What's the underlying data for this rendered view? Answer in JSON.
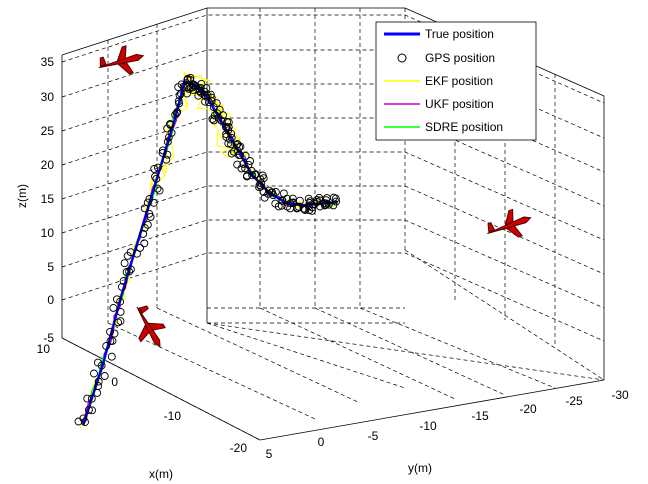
{
  "chart_data": {
    "type": "line",
    "view": "3d",
    "xlabel": "x(m)",
    "ylabel": "y(m)",
    "zlabel": "z(m)",
    "x_ticks": [
      "10",
      "0",
      "-10",
      "-20"
    ],
    "y_ticks": [
      "5",
      "0",
      "-5",
      "-10",
      "-15",
      "-20",
      "-25",
      "-30"
    ],
    "z_ticks": [
      "-5",
      "0",
      "5",
      "10",
      "15",
      "20",
      "25",
      "30",
      "35"
    ],
    "xlim": [
      -20,
      10
    ],
    "ylim": [
      -30,
      5
    ],
    "zlim": [
      -5,
      35
    ],
    "grid": true,
    "legend_position": "top-right",
    "legend": [
      {
        "label": "True position",
        "color": "#0000ff",
        "style": "line"
      },
      {
        "label": "GPS position",
        "color": "#000000",
        "style": "marker-circle"
      },
      {
        "label": "EKF position",
        "color": "#ffff00",
        "style": "line"
      },
      {
        "label": "UKF position",
        "color": "#cc00cc",
        "style": "line"
      },
      {
        "label": "SDRE position",
        "color": "#00ff00",
        "style": "line"
      }
    ],
    "trajectory": [
      {
        "x": -17,
        "y": 3,
        "z": -5
      },
      {
        "x": -13,
        "y": 3,
        "z": 1
      },
      {
        "x": -10,
        "y": 2.5,
        "z": 8
      },
      {
        "x": -7,
        "y": 2,
        "z": 14
      },
      {
        "x": -4,
        "y": 1.5,
        "z": 20
      },
      {
        "x": -1,
        "y": 1,
        "z": 26
      },
      {
        "x": 1,
        "y": 1,
        "z": 30
      },
      {
        "x": 1,
        "y": -1,
        "z": 29
      },
      {
        "x": 1,
        "y": -3,
        "z": 27
      },
      {
        "x": 1,
        "y": -5,
        "z": 24
      },
      {
        "x": 1,
        "y": -7,
        "z": 21
      },
      {
        "x": 1,
        "y": -9,
        "z": 18
      },
      {
        "x": 1,
        "y": -11,
        "z": 15
      },
      {
        "x": 1,
        "y": -14,
        "z": 12
      },
      {
        "x": 1,
        "y": -17,
        "z": 10
      },
      {
        "x": 1,
        "y": -20,
        "z": 9
      },
      {
        "x": 1,
        "y": -23,
        "z": 8.5
      },
      {
        "x": 1,
        "y": -26,
        "z": 8
      }
    ]
  }
}
